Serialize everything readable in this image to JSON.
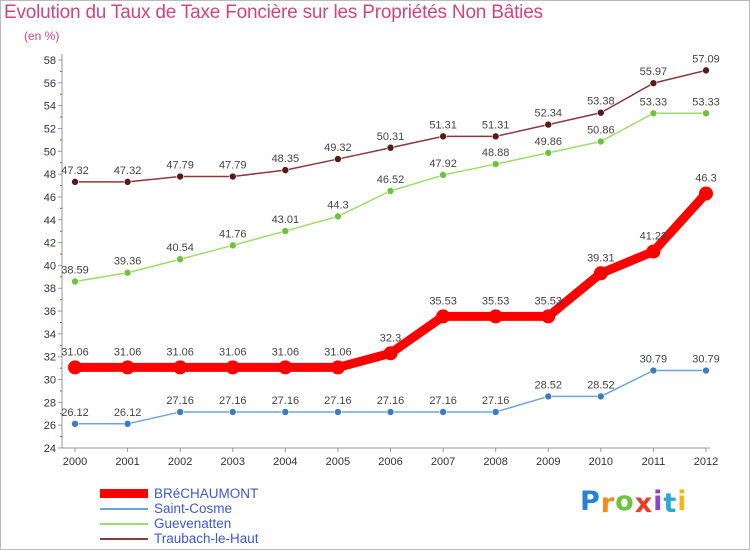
{
  "title": "Evolution du Taux de Taxe Foncière sur les Propriétés Non Bâties",
  "subtitle": "(en %)",
  "logo": {
    "letters": [
      "P",
      "r",
      "o",
      "x",
      "i",
      "t",
      "i"
    ],
    "colors": [
      "#2a7fd8",
      "#f28c1b",
      "#6cc43c",
      "#e63f2a",
      "#8e44c8",
      "#2ea7d8",
      "#f5b515"
    ]
  },
  "chart_data": {
    "type": "line",
    "title": "Evolution du Taux de Taxe Foncière sur les Propriétés Non Bâties",
    "ylabel": "(en %)",
    "x": [
      "2000",
      "2001",
      "2002",
      "2003",
      "2004",
      "2005",
      "2006",
      "2007",
      "2008",
      "2009",
      "2010",
      "2011",
      "2012"
    ],
    "ylim": [
      24,
      58
    ],
    "yticks": [
      24,
      26,
      28,
      30,
      32,
      34,
      36,
      38,
      40,
      42,
      44,
      46,
      48,
      50,
      52,
      54,
      56,
      58
    ],
    "grid": false,
    "legend_position": "bottom-left",
    "series": [
      {
        "name": "BRéCHAUMONT",
        "color": "#ff0000",
        "point_color": "#ff0000",
        "values": [
          31.06,
          31.06,
          31.06,
          31.06,
          31.06,
          31.06,
          32.3,
          35.53,
          35.53,
          35.53,
          39.31,
          41.22,
          46.3
        ],
        "labels": [
          "31.06",
          "31.06",
          "31.06",
          "31.06",
          "31.06",
          "31.06",
          "32.3",
          "35.53",
          "35.53",
          "35.53",
          "39.31",
          "41.22",
          "46.3"
        ]
      },
      {
        "name": "Saint-Cosme",
        "color": "#6fa3d8",
        "point_color": "#3b7cc4",
        "values": [
          26.12,
          26.12,
          27.16,
          27.16,
          27.16,
          27.16,
          27.16,
          27.16,
          27.16,
          28.52,
          28.52,
          30.79,
          30.79
        ],
        "labels": [
          "26.12",
          "26.12",
          "27.16",
          "27.16",
          "27.16",
          "27.16",
          "27.16",
          "27.16",
          "27.16",
          "28.52",
          "28.52",
          "30.79",
          "30.79"
        ]
      },
      {
        "name": "Guevenatten",
        "color": "#9edc6c",
        "point_color": "#6cc43c",
        "values": [
          38.59,
          39.36,
          40.54,
          41.76,
          43.01,
          44.3,
          46.52,
          47.92,
          48.88,
          49.86,
          50.86,
          53.33,
          53.33
        ],
        "labels": [
          "38.59",
          "39.36",
          "40.54",
          "41.76",
          "43.01",
          "44.3",
          "46.52",
          "47.92",
          "48.88",
          "49.86",
          "50.86",
          "53.33",
          "53.33"
        ]
      },
      {
        "name": "Traubach-le-Haut",
        "color": "#8a3a3a",
        "point_color": "#5a1a1a",
        "values": [
          47.32,
          47.32,
          47.79,
          47.79,
          48.35,
          49.32,
          50.31,
          51.31,
          51.31,
          52.34,
          53.38,
          55.97,
          57.09
        ],
        "labels": [
          "47.32",
          "47.32",
          "47.79",
          "47.79",
          "48.35",
          "49.32",
          "50.31",
          "51.31",
          "51.31",
          "52.34",
          "53.38",
          "55.97",
          "57.09"
        ]
      }
    ]
  }
}
